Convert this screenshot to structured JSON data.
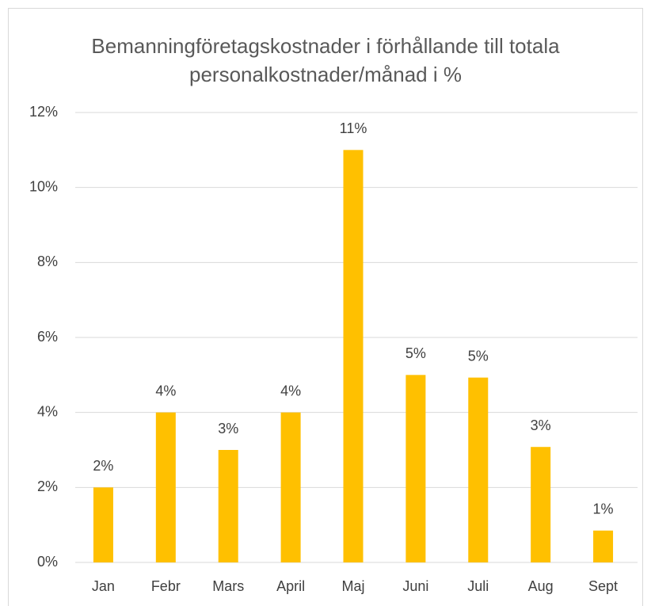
{
  "chart_data": {
    "type": "bar",
    "title": "Bemanningföretagskostnader i förhållande till totala personalkostnader/månad i %",
    "categories": [
      "Jan",
      "Febr",
      "Mars",
      "April",
      "Maj",
      "Juni",
      "Juli",
      "Aug",
      "Sept"
    ],
    "values": [
      2,
      4,
      3,
      4,
      11,
      5,
      4.93,
      3.08,
      0.85
    ],
    "value_labels": [
      "2%",
      "4%",
      "3%",
      "4%",
      "11%",
      "5%",
      "5%",
      "3%",
      "1%"
    ],
    "color": "#ffc000",
    "ylim": [
      0,
      12
    ],
    "yticks": [
      {
        "value": 0,
        "label": "0%"
      },
      {
        "value": 2,
        "label": "2%"
      },
      {
        "value": 4,
        "label": "4%"
      },
      {
        "value": 6,
        "label": "6%"
      },
      {
        "value": 8,
        "label": "8%"
      },
      {
        "value": 10,
        "label": "10%"
      },
      {
        "value": 12,
        "label": "12%"
      }
    ],
    "grid": true
  }
}
